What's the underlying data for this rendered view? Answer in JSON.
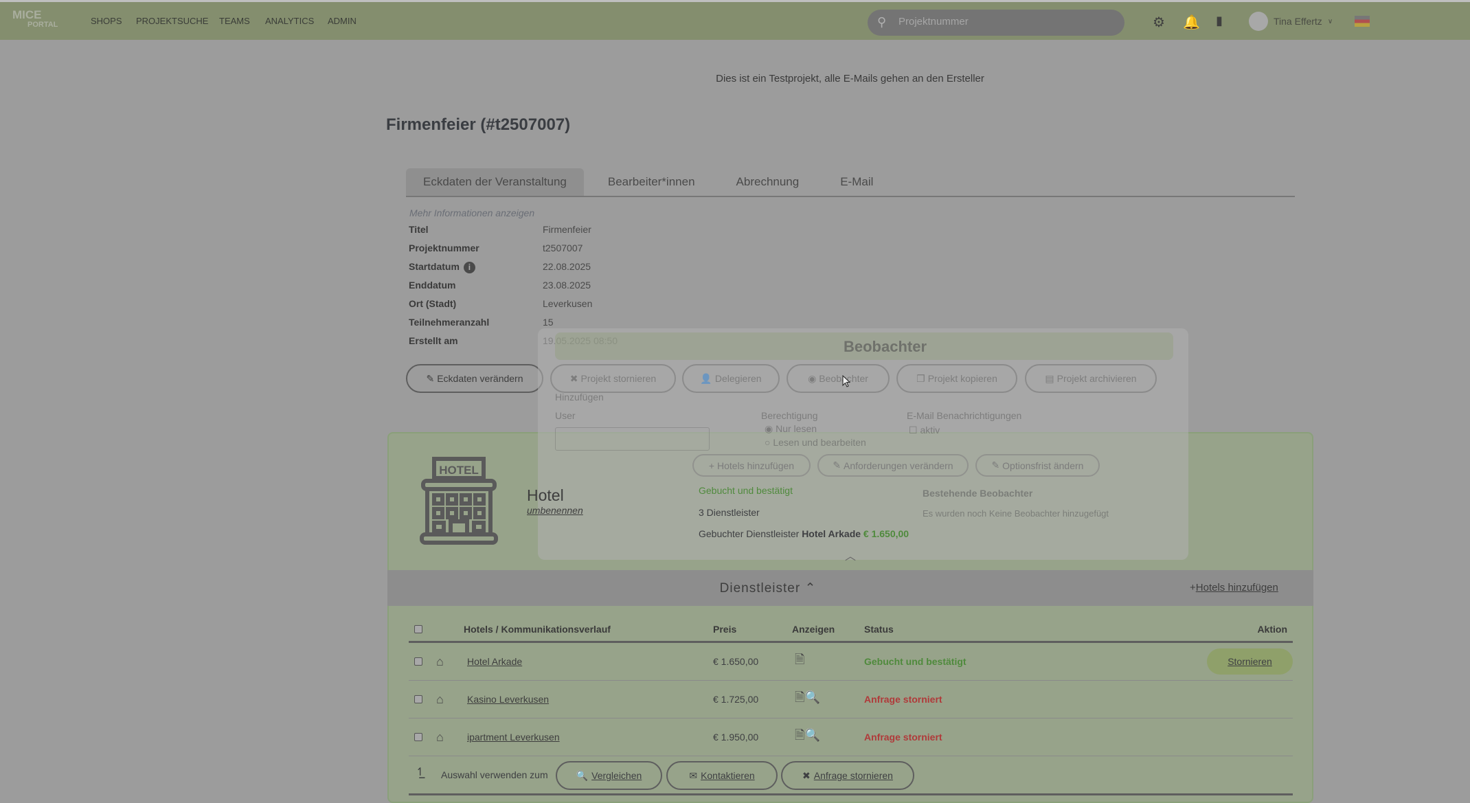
{
  "topbar": {
    "logo_line1": "MICE",
    "logo_line2": "PORTAL",
    "nav": [
      "SHOPS",
      "PROJEKTSUCHE",
      "TEAMS",
      "ANALYTICS",
      "ADMIN"
    ],
    "search_placeholder": "Projektnummer",
    "user_name": "Tina Effertz",
    "icons": [
      "gear-icon",
      "bell-icon",
      "document-icon",
      "user-avatar-icon",
      "german-flag-icon"
    ],
    "bar_color": "#848e6e"
  },
  "banner": "Dies ist ein Testprojekt, alle E-Mails gehen an den Ersteller",
  "page_title": "Firmenfeier (#t2507007)",
  "tabs": [
    "Eckdaten der Veranstaltung",
    "Bearbeiter*innen",
    "Abrechnung",
    "E-Mail"
  ],
  "details": {
    "more_link": "Mehr Informationen anzeigen",
    "rows": [
      {
        "label": "Titel",
        "value": "Firmenfeier"
      },
      {
        "label": "Projektnummer",
        "value": "t2507007"
      },
      {
        "label": "Startdatum",
        "value": "22.08.2025"
      },
      {
        "label": "Enddatum",
        "value": "23.08.2025"
      },
      {
        "label": "Ort (Stadt)",
        "value": "Leverkusen"
      },
      {
        "label": "Teilnehmeranzahl",
        "value": "15"
      },
      {
        "label": "Erstellt am",
        "value": "19.05.2025 08:50"
      }
    ]
  },
  "project_buttons": [
    {
      "icon": "✎",
      "label": "Eckdaten verändern"
    },
    {
      "icon": "✖",
      "label": "Projekt stornieren"
    },
    {
      "icon": "👤",
      "label": "Delegieren"
    },
    {
      "icon": "◉",
      "label": "Beobachter"
    },
    {
      "icon": "❐",
      "label": "Projekt kopieren"
    },
    {
      "icon": "▤",
      "label": "Projekt archivieren"
    }
  ],
  "hotel_panel": {
    "title": "Hotel",
    "rename": "umbenennen",
    "buttons": [
      {
        "icon": "+",
        "label": "Hotels hinzufügen"
      },
      {
        "icon": "✎",
        "label": "Anforderungen verändern"
      },
      {
        "icon": "✎",
        "label": "Optionsfrist ändern"
      }
    ],
    "status": "Gebucht und bestätigt",
    "count": "3 Dienstleister",
    "booked_prefix": "Gebuchter Dienstleister",
    "booked_name": "Hotel Arkade",
    "booked_price": "€ 1.650,00"
  },
  "dienstleister": {
    "title": "Dienstleister",
    "add_link": "Hotels hinzufügen",
    "headers": [
      "Hotels / Kommunikationsverlauf",
      "Preis",
      "Anzeigen",
      "Status",
      "Aktion"
    ],
    "rows": [
      {
        "name": "Hotel Arkade",
        "price": "€ 1.650,00",
        "doc_icon": "document-check-icon",
        "status": "Gebucht und bestätigt",
        "status_color": "#4f8a3c",
        "action": "Stornieren"
      },
      {
        "name": "Kasino Leverkusen",
        "price": "€ 1.725,00",
        "doc_icon": "document-search-icon",
        "status": "Anfrage storniert",
        "status_color": "#b03a3a"
      },
      {
        "name": "ipartment Leverkusen",
        "price": "€ 1.950,00",
        "doc_icon": "document-search-icon",
        "status": "Anfrage storniert",
        "status_color": "#b03a3a"
      }
    ],
    "footer_label": "Auswahl verwenden zum",
    "footer_buttons": [
      {
        "icon": "🔍",
        "label": "Vergleichen"
      },
      {
        "icon": "✉",
        "label": "Kontaktieren"
      },
      {
        "icon": "✖",
        "label": "Anfrage stornieren"
      }
    ]
  },
  "modal": {
    "title": "Beobachter",
    "section": "Hinzufügen",
    "user_label": "User",
    "permission_label": "Berechtigung",
    "perm_read": "Nur lesen",
    "perm_edit": "Lesen und bearbeiten",
    "email_label": "E-Mail Benachrichtigungen",
    "email_active": "aktiv",
    "existing_label": "Bestehende Beobachter",
    "empty_text": "Es wurden noch Keine Beobachter hinzugefügt"
  }
}
